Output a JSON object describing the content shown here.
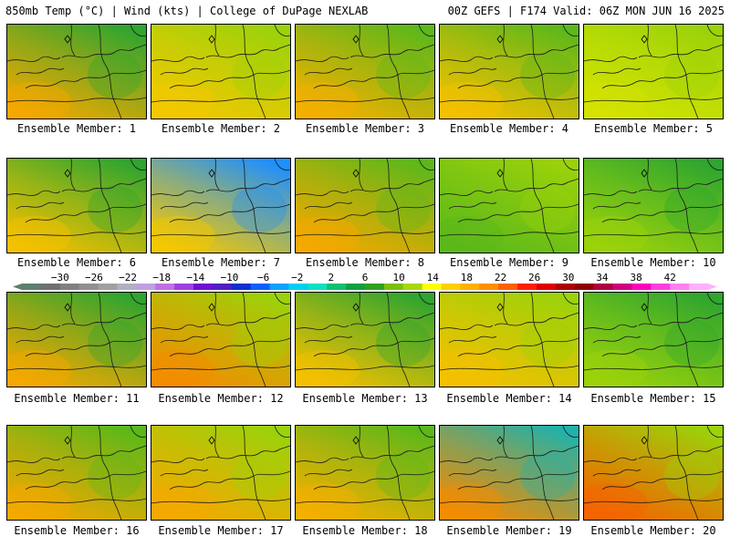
{
  "header": {
    "left": "850mb Temp (°C) | Wind (kts) | College of DuPage NEXLAB",
    "right": "00Z GEFS | F174 Valid: 06Z MON JUN 16 2025"
  },
  "panel_label_prefix": "Ensemble Member: ",
  "members": [
    {
      "label": "Ensemble Member: 1",
      "north": "#2fa52f",
      "south": "#f5a800"
    },
    {
      "label": "Ensemble Member: 2",
      "north": "#9bd20a",
      "south": "#f5c800"
    },
    {
      "label": "Ensemble Member: 3",
      "north": "#5cb81a",
      "south": "#f5b000"
    },
    {
      "label": "Ensemble Member: 4",
      "north": "#5cb81a",
      "south": "#f5c000"
    },
    {
      "label": "Ensemble Member: 5",
      "north": "#9bd20a",
      "south": "#d4e300"
    },
    {
      "label": "Ensemble Member: 6",
      "north": "#2fa52f",
      "south": "#f5c000"
    },
    {
      "label": "Ensemble Member: 7",
      "north": "#1e90ff",
      "south": "#f5c800"
    },
    {
      "label": "Ensemble Member: 8",
      "north": "#5cb81a",
      "south": "#f5a800"
    },
    {
      "label": "Ensemble Member: 9",
      "north": "#9bd20a",
      "south": "#5cb81a"
    },
    {
      "label": "Ensemble Member: 10",
      "north": "#2fa52f",
      "south": "#9bd20a"
    },
    {
      "label": "Ensemble Member: 11",
      "north": "#2fa52f",
      "south": "#f5a800"
    },
    {
      "label": "Ensemble Member: 12",
      "north": "#9bd20a",
      "south": "#f58c00"
    },
    {
      "label": "Ensemble Member: 13",
      "north": "#2fa52f",
      "south": "#f5c000"
    },
    {
      "label": "Ensemble Member: 14",
      "north": "#9bd20a",
      "south": "#f5c000"
    },
    {
      "label": "Ensemble Member: 15",
      "north": "#2fa52f",
      "south": "#9bd20a"
    },
    {
      "label": "Ensemble Member: 16",
      "north": "#5cb81a",
      "south": "#f5a800"
    },
    {
      "label": "Ensemble Member: 17",
      "north": "#9bd20a",
      "south": "#f5a800"
    },
    {
      "label": "Ensemble Member: 18",
      "north": "#5cb81a",
      "south": "#f5b000"
    },
    {
      "label": "Ensemble Member: 19",
      "north": "#20b2aa",
      "south": "#f58c00"
    },
    {
      "label": "Ensemble Member: 20",
      "north": "#9bd20a",
      "south": "#f56400"
    }
  ],
  "colorbar": {
    "tick_labels": [
      "−30",
      "−26",
      "−22",
      "−18",
      "−14",
      "−10",
      "−6",
      "−2",
      "2",
      "6",
      "10",
      "14",
      "18",
      "22",
      "26",
      "30",
      "34",
      "38",
      "42"
    ],
    "colors": [
      "#5f7f6f",
      "#707070",
      "#808080",
      "#909090",
      "#a0a0a0",
      "#b0b0c0",
      "#c0a0e0",
      "#c070e0",
      "#a040e0",
      "#7010d0",
      "#5020c0",
      "#1030d0",
      "#1060ff",
      "#10a0ff",
      "#00d0f0",
      "#10e0c0",
      "#10c070",
      "#10a040",
      "#30a020",
      "#7cc010",
      "#a8d808",
      "#ffff00",
      "#ffd000",
      "#ffb000",
      "#ff9000",
      "#ff6000",
      "#ff2000",
      "#e00000",
      "#b00000",
      "#900000",
      "#b00040",
      "#d00080",
      "#ff00c0",
      "#ff40e0",
      "#ff80f0",
      "#ffb0ff"
    ]
  }
}
